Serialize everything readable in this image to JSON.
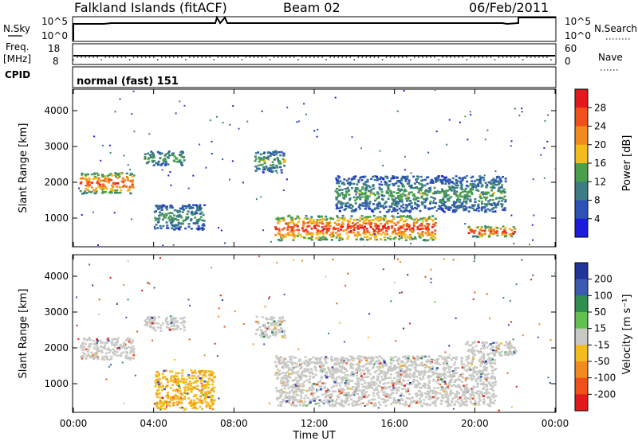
{
  "header": {
    "station": "Falkland Islands (fitACF)",
    "beam": "Beam 02",
    "date": "06/Feb/2011"
  },
  "nsky_panel": {
    "left_label": "N.Sky",
    "right_label": "N.Search",
    "left_ticks": [
      "10^5",
      "10^0"
    ],
    "right_ticks": [
      "10^5",
      "10^0"
    ]
  },
  "freq_panel": {
    "left_label_1": "Freq.",
    "left_label_2": "[MHz]",
    "right_label": "Nave",
    "left_ticks": [
      "18",
      "8"
    ],
    "right_ticks": [
      "60",
      "0"
    ]
  },
  "cpid": {
    "label": "CPID",
    "text": "normal (fast) 151"
  },
  "colors": {
    "power_scale": [
      "#1c1cdc",
      "#2c52b8",
      "#3b7d82",
      "#4aa04a",
      "#f2bc1d",
      "#f28a1d",
      "#f0501a",
      "#e31a1c"
    ],
    "velocity_scale": [
      "#22339a",
      "#3b5bb0",
      "#2f8f4f",
      "#61c251",
      "#c8c8c4",
      "#f2bc1d",
      "#f28a1d",
      "#f0501a",
      "#e31a1c"
    ],
    "background_scatter": "#c8c8c4"
  },
  "chart_data": [
    {
      "type": "heatmap",
      "name": "power",
      "ylabel": "Slant Range [km]",
      "yticks": [
        "1000",
        "2000",
        "3000",
        "4000"
      ],
      "ylim": [
        200,
        4600
      ],
      "colorbar_label": "Power [dB]",
      "colorbar_ticks": [
        "4",
        "8",
        "12",
        "16",
        "20",
        "24",
        "28"
      ],
      "colorbar_range": [
        0,
        30
      ],
      "features": [
        {
          "t": [
            0.3,
            3.0
          ],
          "range": [
            1700,
            2300
          ],
          "value": 26
        },
        {
          "t": [
            3.5,
            5.5
          ],
          "range": [
            2500,
            2900
          ],
          "value": 14
        },
        {
          "t": [
            4.0,
            6.5
          ],
          "range": [
            700,
            1400
          ],
          "value": 12
        },
        {
          "t": [
            9.0,
            10.5
          ],
          "range": [
            2300,
            2900
          ],
          "value": 14
        },
        {
          "t": [
            10.0,
            18.0
          ],
          "range": [
            400,
            1100
          ],
          "value": 27
        },
        {
          "t": [
            13.0,
            21.5
          ],
          "range": [
            1200,
            2200
          ],
          "value": 13
        },
        {
          "t": [
            19.5,
            22.0
          ],
          "range": [
            500,
            800
          ],
          "value": 28
        }
      ]
    },
    {
      "type": "heatmap",
      "name": "velocity",
      "ylabel": "Slant Range [km]",
      "yticks": [
        "1000",
        "2000",
        "3000",
        "4000"
      ],
      "ylim": [
        200,
        4600
      ],
      "xlabel": "Time UT",
      "xticks": [
        "00:00",
        "04:00",
        "08:00",
        "12:00",
        "16:00",
        "20:00",
        "00:00"
      ],
      "xlim": [
        0,
        24
      ],
      "colorbar_label": "Velocity [m s⁻¹]",
      "colorbar_ticks": [
        "200",
        "100",
        "50",
        "15",
        "-15",
        "-50",
        "-100",
        "-200"
      ],
      "colorbar_range": [
        -250,
        250
      ],
      "features": [
        {
          "t": [
            0.3,
            3.0
          ],
          "range": [
            1700,
            2300
          ],
          "value": 0
        },
        {
          "t": [
            3.5,
            5.5
          ],
          "range": [
            2500,
            2900
          ],
          "value": 0
        },
        {
          "t": [
            4.0,
            7.0
          ],
          "range": [
            300,
            1400
          ],
          "value": -40
        },
        {
          "t": [
            9.0,
            10.5
          ],
          "range": [
            2300,
            2900
          ],
          "value": 0
        },
        {
          "t": [
            10.0,
            21.0
          ],
          "range": [
            400,
            1800
          ],
          "value": 0
        },
        {
          "t": [
            19.5,
            22.0
          ],
          "range": [
            1800,
            2200
          ],
          "value": 0
        }
      ]
    }
  ]
}
